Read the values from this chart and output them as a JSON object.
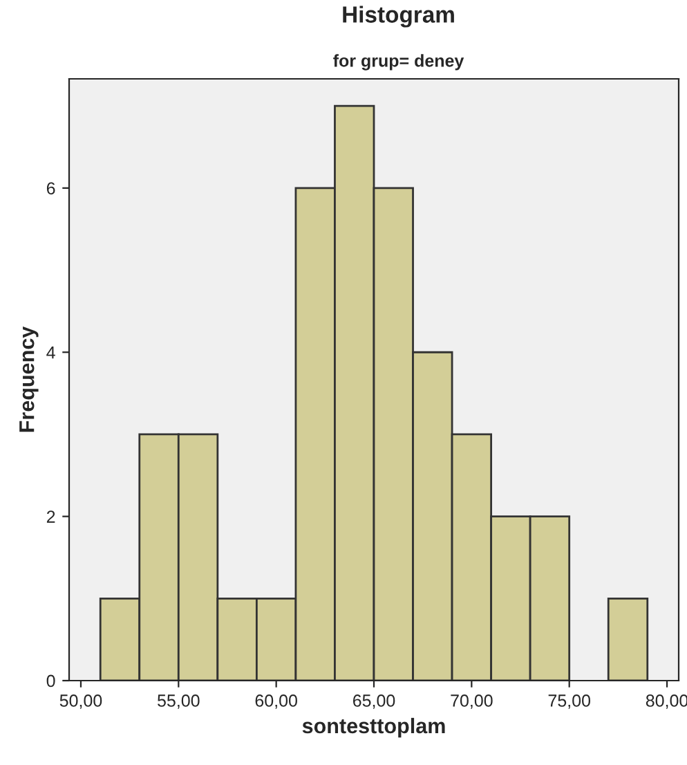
{
  "chart_data": {
    "type": "histogram",
    "title": "Histogram",
    "subtitle": "for grup= deney",
    "xlabel": "sontesttoplam",
    "ylabel": "Frequency",
    "bins": [
      51,
      53,
      55,
      57,
      59,
      61,
      63,
      65,
      67,
      69,
      71,
      73,
      75,
      77,
      79
    ],
    "values": [
      1,
      3,
      3,
      1,
      1,
      6,
      7,
      6,
      4,
      3,
      2,
      2,
      0,
      1
    ],
    "color": "#d3ce97",
    "xlim": [
      49.4,
      80.6
    ],
    "xticks": [
      {
        "value": 50,
        "label": "50,00"
      },
      {
        "value": 55,
        "label": "55,00"
      },
      {
        "value": 60,
        "label": "60,00"
      },
      {
        "value": 65,
        "label": "65,00"
      },
      {
        "value": 70,
        "label": "70,00"
      },
      {
        "value": 75,
        "label": "75,00"
      },
      {
        "value": 80,
        "label": "80,00"
      }
    ],
    "ylim": [
      0,
      7.33
    ],
    "yticks": [
      0,
      2,
      4,
      6
    ],
    "grid": false
  }
}
